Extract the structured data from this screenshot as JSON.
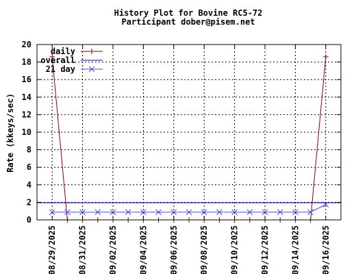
{
  "chart_data": {
    "type": "line",
    "title": "History Plot for Bovine RC5-72",
    "subtitle": "Participant dober@pisem.net",
    "xlabel": "",
    "ylabel": "Rate (kkeys/sec)",
    "ylim": [
      0,
      20
    ],
    "yticks": [
      0,
      2,
      4,
      6,
      8,
      10,
      12,
      14,
      16,
      18,
      20
    ],
    "xlim": [
      "2025-08-28",
      "2025-09-17"
    ],
    "xticks": [
      "08/29/2025",
      "08/31/2025",
      "09/02/2025",
      "09/04/2025",
      "09/06/2025",
      "09/08/2025",
      "09/10/2025",
      "09/12/2025",
      "09/14/2025",
      "09/16/2025"
    ],
    "grid": true,
    "legend_position": "top-left",
    "series": [
      {
        "name": "daily",
        "color": "#8b0000",
        "marker": "plus",
        "x": [
          "2025-08-29",
          "2025-08-30",
          "2025-08-31",
          "2025-09-01",
          "2025-09-02",
          "2025-09-03",
          "2025-09-04",
          "2025-09-05",
          "2025-09-06",
          "2025-09-07",
          "2025-09-08",
          "2025-09-09",
          "2025-09-10",
          "2025-09-11",
          "2025-09-12",
          "2025-09-13",
          "2025-09-14",
          "2025-09-15",
          "2025-09-16"
        ],
        "values": [
          18.6,
          0,
          0,
          0,
          0,
          0,
          0,
          0,
          0,
          0,
          0,
          0,
          0,
          0,
          0,
          0,
          0,
          0,
          18.6
        ]
      },
      {
        "name": "overall",
        "color": "#00008b",
        "marker": "none",
        "x": [
          "2025-08-28",
          "2025-09-17"
        ],
        "values": [
          1.95,
          1.95
        ]
      },
      {
        "name": "21 day",
        "color": "#4b4bd2",
        "marker": "x",
        "x": [
          "2025-08-29",
          "2025-08-30",
          "2025-08-31",
          "2025-09-01",
          "2025-09-02",
          "2025-09-03",
          "2025-09-04",
          "2025-09-05",
          "2025-09-06",
          "2025-09-07",
          "2025-09-08",
          "2025-09-09",
          "2025-09-10",
          "2025-09-11",
          "2025-09-12",
          "2025-09-13",
          "2025-09-14",
          "2025-09-15",
          "2025-09-16"
        ],
        "values": [
          0.88,
          0.88,
          0.88,
          0.88,
          0.88,
          0.88,
          0.88,
          0.88,
          0.88,
          0.88,
          0.88,
          0.88,
          0.88,
          0.88,
          0.88,
          0.88,
          0.88,
          0.88,
          1.76
        ]
      }
    ]
  }
}
